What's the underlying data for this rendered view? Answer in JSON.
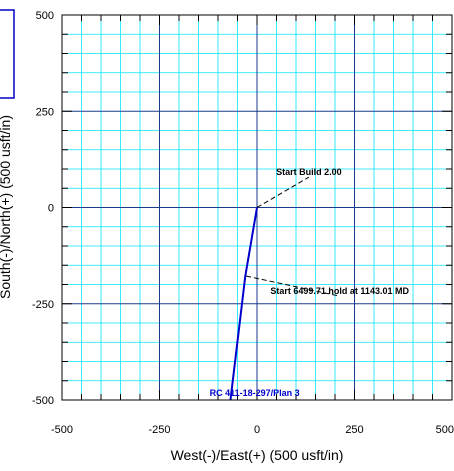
{
  "chart_data": {
    "type": "line",
    "xlabel": "West(-)/East(+) (500 usft/in)",
    "ylabel": "South(-)/North(+) (500 usft/in)",
    "xlim": [
      -500,
      500
    ],
    "ylim": [
      -500,
      500
    ],
    "x_ticks": [
      {
        "value": -500,
        "label": "-500"
      },
      {
        "value": -250,
        "label": "-250"
      },
      {
        "value": 0,
        "label": "0"
      },
      {
        "value": 250,
        "label": "250"
      },
      {
        "value": 500,
        "label": "500"
      }
    ],
    "y_ticks": [
      {
        "value": 500,
        "label": "500"
      },
      {
        "value": 250,
        "label": "250"
      },
      {
        "value": 0,
        "label": "0"
      },
      {
        "value": -250,
        "label": "-250"
      },
      {
        "value": -500,
        "label": "-500"
      }
    ],
    "grid": true,
    "colors": {
      "minor_grid": "#00e5ff",
      "major_grid": "#1a3a8c",
      "path": "#0000cc",
      "legend_border": "#0000cc"
    },
    "series": [
      {
        "x": [
          0,
          -30,
          -68
        ],
        "y": [
          0,
          -178,
          -500
        ]
      }
    ],
    "annotations": [
      {
        "text": "Start Build 2.00",
        "x": 133,
        "y": 84,
        "point": [
          0,
          0
        ]
      },
      {
        "text": "Start 6499.71 hold at 1143.01 MD",
        "x": 212,
        "y": -225,
        "point": [
          -28,
          -178
        ]
      }
    ],
    "well_label": {
      "text": "RC 411-18-297/Plan 3",
      "x": -6,
      "y": -490
    }
  }
}
